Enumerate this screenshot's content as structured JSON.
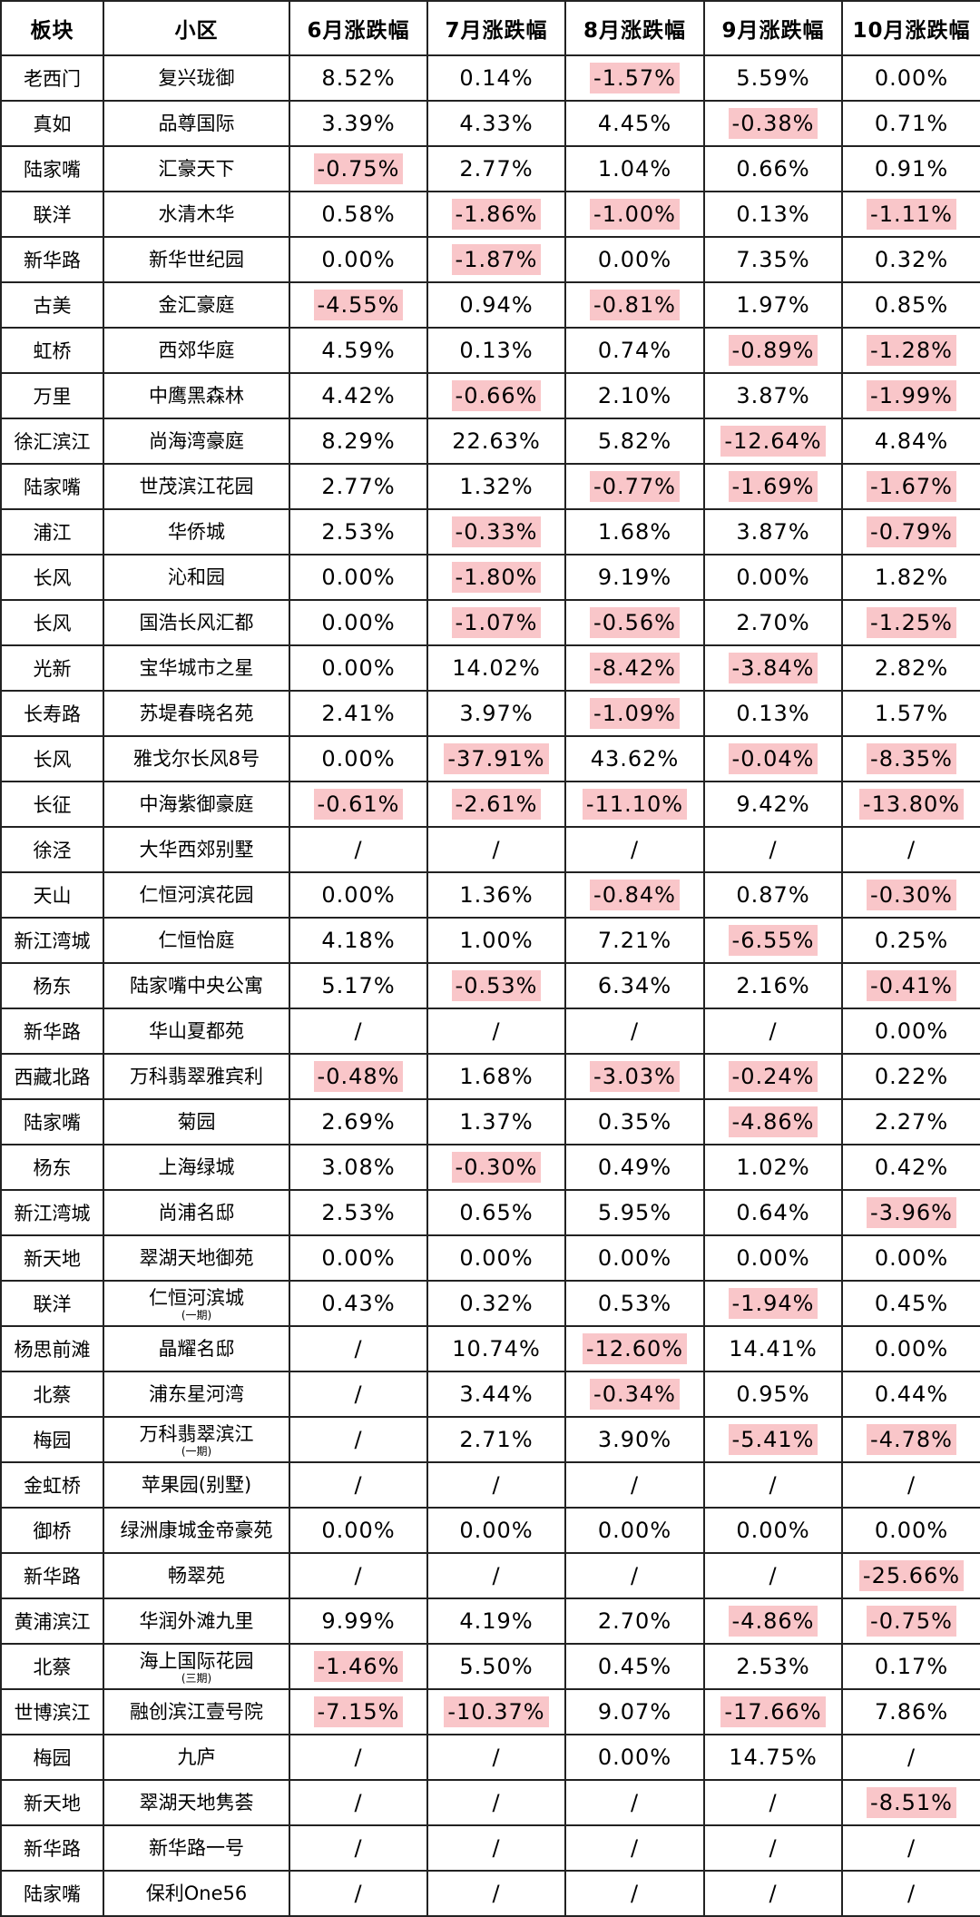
{
  "headers": [
    "板块",
    "小区",
    "6月涨跌幅",
    "7月涨跌幅",
    "8月涨跌幅",
    "9月涨跌幅",
    "10月涨跌幅"
  ],
  "colors": {
    "negative_highlight": "#f9c6c9",
    "border": "#222222",
    "text": "#000000"
  },
  "rows": [
    {
      "board": "老西门",
      "name": "复兴珑御",
      "sub": "",
      "values": [
        "8.52%",
        "0.14%",
        "-1.57%",
        "5.59%",
        "0.00%"
      ]
    },
    {
      "board": "真如",
      "name": "品尊国际",
      "sub": "",
      "values": [
        "3.39%",
        "4.33%",
        "4.45%",
        "-0.38%",
        "0.71%"
      ]
    },
    {
      "board": "陆家嘴",
      "name": "汇豪天下",
      "sub": "",
      "values": [
        "-0.75%",
        "2.77%",
        "1.04%",
        "0.66%",
        "0.91%"
      ]
    },
    {
      "board": "联洋",
      "name": "水清木华",
      "sub": "",
      "values": [
        "0.58%",
        "-1.86%",
        "-1.00%",
        "0.13%",
        "-1.11%"
      ]
    },
    {
      "board": "新华路",
      "name": "新华世纪园",
      "sub": "",
      "values": [
        "0.00%",
        "-1.87%",
        "0.00%",
        "7.35%",
        "0.32%"
      ]
    },
    {
      "board": "古美",
      "name": "金汇豪庭",
      "sub": "",
      "values": [
        "-4.55%",
        "0.94%",
        "-0.81%",
        "1.97%",
        "0.85%"
      ]
    },
    {
      "board": "虹桥",
      "name": "西郊华庭",
      "sub": "",
      "values": [
        "4.59%",
        "0.13%",
        "0.74%",
        "-0.89%",
        "-1.28%"
      ]
    },
    {
      "board": "万里",
      "name": "中鹰黑森林",
      "sub": "",
      "values": [
        "4.42%",
        "-0.66%",
        "2.10%",
        "3.87%",
        "-1.99%"
      ]
    },
    {
      "board": "徐汇滨江",
      "name": "尚海湾豪庭",
      "sub": "",
      "values": [
        "8.29%",
        "22.63%",
        "5.82%",
        "-12.64%",
        "4.84%"
      ]
    },
    {
      "board": "陆家嘴",
      "name": "世茂滨江花园",
      "sub": "",
      "values": [
        "2.77%",
        "1.32%",
        "-0.77%",
        "-1.69%",
        "-1.67%"
      ]
    },
    {
      "board": "浦江",
      "name": "华侨城",
      "sub": "",
      "values": [
        "2.53%",
        "-0.33%",
        "1.68%",
        "3.87%",
        "-0.79%"
      ]
    },
    {
      "board": "长风",
      "name": "沁和园",
      "sub": "",
      "values": [
        "0.00%",
        "-1.80%",
        "9.19%",
        "0.00%",
        "1.82%"
      ]
    },
    {
      "board": "长风",
      "name": "国浩长风汇都",
      "sub": "",
      "values": [
        "0.00%",
        "-1.07%",
        "-0.56%",
        "2.70%",
        "-1.25%"
      ]
    },
    {
      "board": "光新",
      "name": "宝华城市之星",
      "sub": "",
      "values": [
        "0.00%",
        "14.02%",
        "-8.42%",
        "-3.84%",
        "2.82%"
      ]
    },
    {
      "board": "长寿路",
      "name": "苏堤春晓名苑",
      "sub": "",
      "values": [
        "2.41%",
        "3.97%",
        "-1.09%",
        "0.13%",
        "1.57%"
      ]
    },
    {
      "board": "长风",
      "name": "雅戈尔长风8号",
      "sub": "",
      "values": [
        "0.00%",
        "-37.91%",
        "43.62%",
        "-0.04%",
        "-8.35%"
      ]
    },
    {
      "board": "长征",
      "name": "中海紫御豪庭",
      "sub": "",
      "values": [
        "-0.61%",
        "-2.61%",
        "-11.10%",
        "9.42%",
        "-13.80%"
      ]
    },
    {
      "board": "徐泾",
      "name": "大华西郊别墅",
      "sub": "",
      "values": [
        "/",
        "/",
        "/",
        "/",
        "/"
      ]
    },
    {
      "board": "天山",
      "name": "仁恒河滨花园",
      "sub": "",
      "values": [
        "0.00%",
        "1.36%",
        "-0.84%",
        "0.87%",
        "-0.30%"
      ]
    },
    {
      "board": "新江湾城",
      "name": "仁恒怡庭",
      "sub": "",
      "values": [
        "4.18%",
        "1.00%",
        "7.21%",
        "-6.55%",
        "0.25%"
      ]
    },
    {
      "board": "杨东",
      "name": "陆家嘴中央公寓",
      "sub": "",
      "values": [
        "5.17%",
        "-0.53%",
        "6.34%",
        "2.16%",
        "-0.41%"
      ]
    },
    {
      "board": "新华路",
      "name": "华山夏都苑",
      "sub": "",
      "values": [
        "/",
        "/",
        "/",
        "/",
        "0.00%"
      ]
    },
    {
      "board": "西藏北路",
      "name": "万科翡翠雅宾利",
      "sub": "",
      "values": [
        "-0.48%",
        "1.68%",
        "-3.03%",
        "-0.24%",
        "0.22%"
      ]
    },
    {
      "board": "陆家嘴",
      "name": "菊园",
      "sub": "",
      "values": [
        "2.69%",
        "1.37%",
        "0.35%",
        "-4.86%",
        "2.27%"
      ]
    },
    {
      "board": "杨东",
      "name": "上海绿城",
      "sub": "",
      "values": [
        "3.08%",
        "-0.30%",
        "0.49%",
        "1.02%",
        "0.42%"
      ]
    },
    {
      "board": "新江湾城",
      "name": "尚浦名邸",
      "sub": "",
      "values": [
        "2.53%",
        "0.65%",
        "5.95%",
        "0.64%",
        "-3.96%"
      ]
    },
    {
      "board": "新天地",
      "name": "翠湖天地御苑",
      "sub": "",
      "values": [
        "0.00%",
        "0.00%",
        "0.00%",
        "0.00%",
        "0.00%"
      ]
    },
    {
      "board": "联洋",
      "name": "仁恒河滨城",
      "sub": "(一期)",
      "values": [
        "0.43%",
        "0.32%",
        "0.53%",
        "-1.94%",
        "0.45%"
      ]
    },
    {
      "board": "杨思前滩",
      "name": "晶耀名邸",
      "sub": "",
      "values": [
        "/",
        "10.74%",
        "-12.60%",
        "14.41%",
        "0.00%"
      ]
    },
    {
      "board": "北蔡",
      "name": "浦东星河湾",
      "sub": "",
      "values": [
        "/",
        "3.44%",
        "-0.34%",
        "0.95%",
        "0.44%"
      ]
    },
    {
      "board": "梅园",
      "name": "万科翡翠滨江",
      "sub": "(一期)",
      "values": [
        "/",
        "2.71%",
        "3.90%",
        "-5.41%",
        "-4.78%"
      ]
    },
    {
      "board": "金虹桥",
      "name": "苹果园(别墅)",
      "sub": "",
      "values": [
        "/",
        "/",
        "/",
        "/",
        "/"
      ]
    },
    {
      "board": "御桥",
      "name": "绿洲康城金帝豪苑",
      "sub": "",
      "values": [
        "0.00%",
        "0.00%",
        "0.00%",
        "0.00%",
        "0.00%"
      ]
    },
    {
      "board": "新华路",
      "name": "畅翠苑",
      "sub": "",
      "values": [
        "/",
        "/",
        "/",
        "/",
        "-25.66%"
      ]
    },
    {
      "board": "黄浦滨江",
      "name": "华润外滩九里",
      "sub": "",
      "values": [
        "9.99%",
        "4.19%",
        "2.70%",
        "-4.86%",
        "-0.75%"
      ]
    },
    {
      "board": "北蔡",
      "name": "海上国际花园",
      "sub": "(三期)",
      "values": [
        "-1.46%",
        "5.50%",
        "0.45%",
        "2.53%",
        "0.17%"
      ]
    },
    {
      "board": "世博滨江",
      "name": "融创滨江壹号院",
      "sub": "",
      "values": [
        "-7.15%",
        "-10.37%",
        "9.07%",
        "-17.66%",
        "7.86%"
      ]
    },
    {
      "board": "梅园",
      "name": "九庐",
      "sub": "",
      "values": [
        "/",
        "/",
        "0.00%",
        "14.75%",
        "/"
      ]
    },
    {
      "board": "新天地",
      "name": "翠湖天地隽荟",
      "sub": "",
      "values": [
        "/",
        "/",
        "/",
        "/",
        "-8.51%"
      ]
    },
    {
      "board": "新华路",
      "name": "新华路一号",
      "sub": "",
      "values": [
        "/",
        "/",
        "/",
        "/",
        "/"
      ]
    },
    {
      "board": "陆家嘴",
      "name": "保利One56",
      "sub": "",
      "values": [
        "/",
        "/",
        "/",
        "/",
        "/"
      ]
    }
  ]
}
